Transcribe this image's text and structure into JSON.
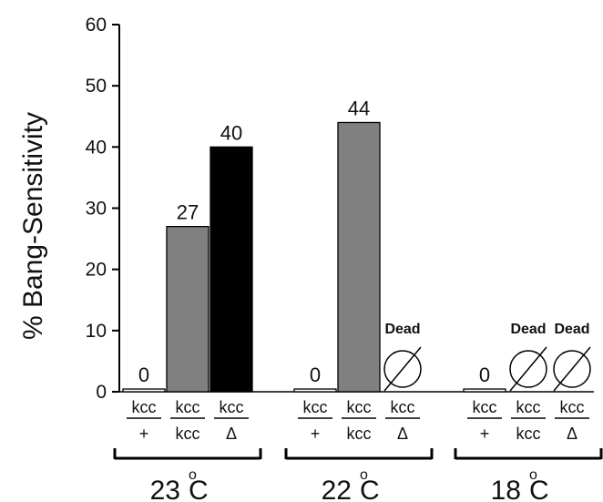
{
  "chart_data": {
    "type": "bar",
    "title": "",
    "xlabel": "",
    "ylabel": "% Bang-Sensitivity",
    "ylim": [
      0,
      60
    ],
    "yticks": [
      0,
      10,
      20,
      30,
      40,
      50,
      60
    ],
    "grid": false,
    "groups": [
      {
        "temp_value": "23",
        "temp_degree": "o",
        "temp_unit": "C",
        "bars": [
          {
            "top": "kcc",
            "bottom": "+",
            "value": 0,
            "label": "0",
            "color": "#ffffff",
            "dead": false
          },
          {
            "top": "kcc",
            "bottom": "kcc",
            "value": 27,
            "label": "27",
            "color": "#808080",
            "dead": false
          },
          {
            "top": "kcc",
            "bottom": "Δ",
            "value": 40,
            "label": "40",
            "color": "#000000",
            "dead": false
          }
        ]
      },
      {
        "temp_value": "22",
        "temp_degree": "o",
        "temp_unit": "C",
        "bars": [
          {
            "top": "kcc",
            "bottom": "+",
            "value": 0,
            "label": "0",
            "color": "#ffffff",
            "dead": false
          },
          {
            "top": "kcc",
            "bottom": "kcc",
            "value": 44,
            "label": "44",
            "color": "#808080",
            "dead": false
          },
          {
            "top": "kcc",
            "bottom": "Δ",
            "value": null,
            "label": "Dead",
            "color": "#000000",
            "dead": true
          }
        ]
      },
      {
        "temp_value": "18",
        "temp_degree": "o",
        "temp_unit": "C",
        "bars": [
          {
            "top": "kcc",
            "bottom": "+",
            "value": 0,
            "label": "0",
            "color": "#ffffff",
            "dead": false
          },
          {
            "top": "kcc",
            "bottom": "kcc",
            "value": null,
            "label": "Dead",
            "color": "#808080",
            "dead": true
          },
          {
            "top": "kcc",
            "bottom": "Δ",
            "value": null,
            "label": "Dead",
            "color": "#000000",
            "dead": true
          }
        ]
      }
    ]
  }
}
